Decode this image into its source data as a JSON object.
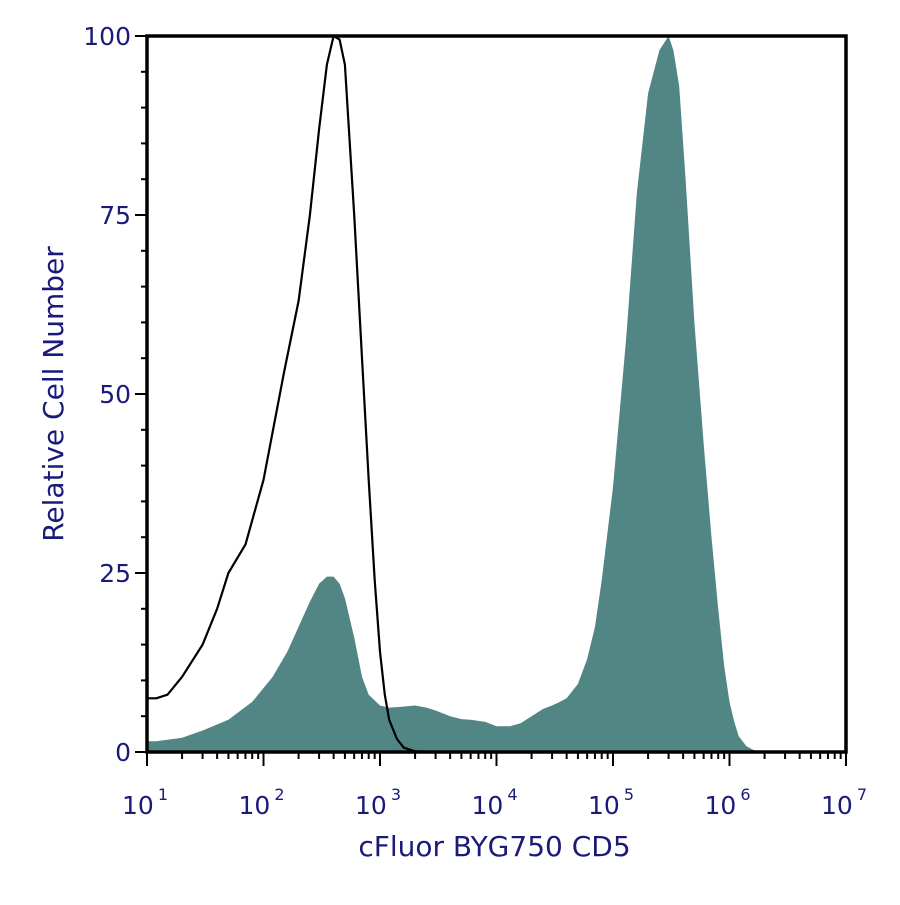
{
  "chart_data": {
    "type": "area",
    "xlabel": "cFluor BYG750 CD5",
    "ylabel": "Relative Cell Number",
    "x_scale": "log",
    "xlim": [
      10,
      10000000
    ],
    "ylim": [
      0,
      100
    ],
    "x_ticks": [
      {
        "base": "10",
        "exp": "1",
        "value": 10
      },
      {
        "base": "10",
        "exp": "2",
        "value": 100
      },
      {
        "base": "10",
        "exp": "3",
        "value": 1000
      },
      {
        "base": "10",
        "exp": "4",
        "value": 10000
      },
      {
        "base": "10",
        "exp": "5",
        "value": 100000
      },
      {
        "base": "10",
        "exp": "6",
        "value": 1000000
      },
      {
        "base": "10",
        "exp": "7",
        "value": 10000000
      }
    ],
    "y_ticks": [
      "0",
      "25",
      "50",
      "75",
      "100"
    ],
    "grid": false,
    "legend": "none",
    "series": [
      {
        "style": "filled",
        "color": "#528684",
        "x": [
          10,
          12,
          15,
          20,
          30,
          50,
          80,
          120,
          160,
          200,
          250,
          300,
          350,
          400,
          450,
          500,
          600,
          700,
          800,
          1000,
          1200,
          1500,
          2000,
          2500,
          3000,
          4000,
          5000,
          6000,
          8000,
          10000,
          13000,
          16000,
          20000,
          25000,
          30000,
          35000,
          40000,
          50000,
          60000,
          70000,
          80000,
          100000,
          130000,
          160000,
          200000,
          250000,
          300000,
          330000,
          370000,
          420000,
          500000,
          600000,
          700000,
          800000,
          900000,
          1000000,
          1100000,
          1200000,
          1400000,
          1600000,
          1800000,
          2000000,
          3000000,
          5000000,
          10000000
        ],
        "y": [
          1.5,
          1.5,
          1.7,
          2,
          3,
          4.5,
          7,
          10.5,
          14,
          17.5,
          21,
          23.5,
          24.5,
          24.5,
          23.5,
          21.5,
          16,
          10.5,
          8,
          6.5,
          6.2,
          6.3,
          6.5,
          6.2,
          5.8,
          5,
          4.6,
          4.5,
          4.2,
          3.6,
          3.6,
          4,
          5,
          6,
          6.5,
          7,
          7.5,
          9.5,
          13,
          17.5,
          24,
          37,
          58,
          78,
          92,
          98,
          100,
          98,
          93,
          80,
          60,
          43,
          30,
          20,
          12,
          7,
          4.2,
          2.2,
          0.8,
          0.3,
          0.1,
          0,
          0,
          0,
          0
        ]
      },
      {
        "style": "outline",
        "color": "#000000",
        "x": [
          10,
          12,
          15,
          20,
          30,
          40,
          50,
          70,
          100,
          150,
          200,
          250,
          300,
          350,
          400,
          450,
          500,
          600,
          700,
          800,
          900,
          1000,
          1100,
          1200,
          1400,
          1600,
          2000,
          3000,
          10000000
        ],
        "y": [
          7.5,
          7.5,
          8,
          10.5,
          15,
          20,
          25,
          29,
          38,
          53,
          63,
          75,
          87,
          96,
          100,
          99.5,
          96,
          75,
          55,
          38,
          24,
          14,
          8,
          4.5,
          1.8,
          0.6,
          0.1,
          0,
          0
        ]
      }
    ]
  }
}
